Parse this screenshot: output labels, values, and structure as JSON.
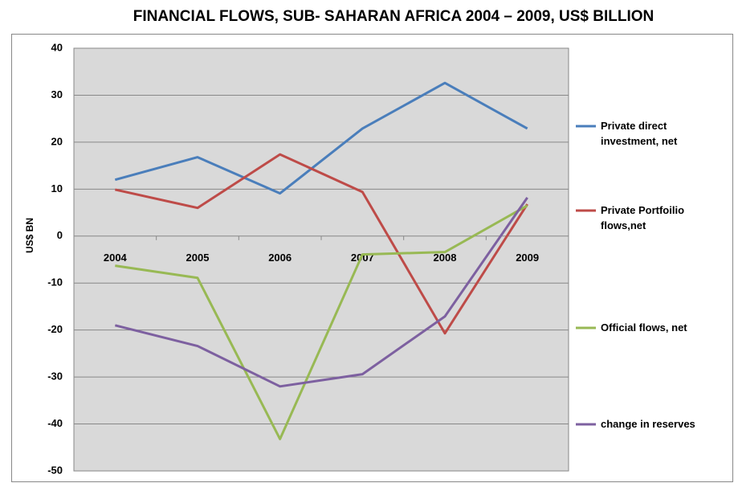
{
  "chart_data": {
    "type": "line",
    "title": "FINANCIAL FLOWS, SUB- SAHARAN AFRICA 2004 – 2009, US$ BILLION",
    "y_label": "US$ BN",
    "categories": [
      "2004",
      "2005",
      "2006",
      "2007",
      "2008",
      "2009"
    ],
    "series": [
      {
        "name": "Private direct investment, net",
        "color": "#4a7ebb",
        "values": [
          12.0,
          16.8,
          9.1,
          22.9,
          32.6,
          22.9
        ]
      },
      {
        "name": "Private Portfoilio flows,net",
        "color": "#be4b48",
        "values": [
          9.9,
          6.0,
          17.4,
          9.4,
          -20.7,
          6.8
        ]
      },
      {
        "name": "Official flows, net",
        "color": "#98b954",
        "values": [
          -6.3,
          -8.9,
          -43.2,
          -3.9,
          -3.4,
          6.5
        ]
      },
      {
        "name": "change in reserves",
        "color": "#7d60a0",
        "values": [
          -19.0,
          -23.4,
          -32.0,
          -29.4,
          -17.1,
          8.2
        ]
      }
    ],
    "ylim": [
      -50,
      40
    ],
    "yticks": [
      -50,
      -40,
      -30,
      -20,
      -10,
      0,
      10,
      20,
      30,
      40
    ],
    "grid": true,
    "legend": "right"
  }
}
